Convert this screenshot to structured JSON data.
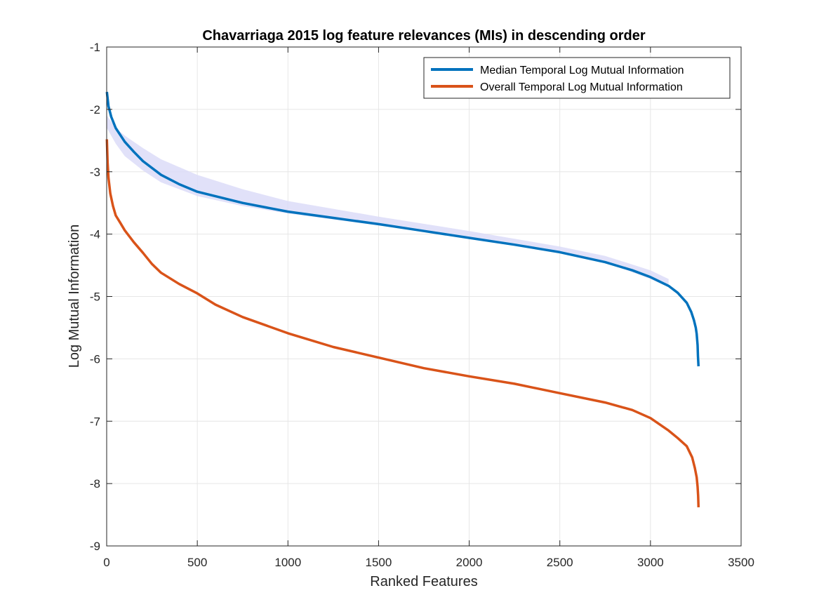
{
  "chart_data": {
    "type": "line",
    "title": "Chavarriaga 2015 log feature relevances (MIs) in descending order",
    "xlabel": "Ranked Features",
    "ylabel": "Log Mutual Information",
    "xlim": [
      0,
      3500
    ],
    "ylim": [
      -9,
      -1
    ],
    "xticks": [
      0,
      500,
      1000,
      1500,
      2000,
      2500,
      3000,
      3500
    ],
    "yticks": [
      -1,
      -2,
      -3,
      -4,
      -5,
      -6,
      -7,
      -8,
      -9
    ],
    "grid": true,
    "legend_position": "top-right",
    "series": [
      {
        "name": "Median Temporal Log Mutual Information",
        "color": "#0072BD",
        "x": [
          1,
          10,
          25,
          50,
          100,
          150,
          200,
          300,
          400,
          500,
          750,
          1000,
          1250,
          1500,
          1750,
          2000,
          2250,
          2500,
          2750,
          2900,
          3000,
          3100,
          3150,
          3200,
          3225,
          3240,
          3250,
          3255,
          3260,
          3262,
          3265
        ],
        "y": [
          -1.72,
          -1.95,
          -2.12,
          -2.3,
          -2.52,
          -2.68,
          -2.83,
          -3.05,
          -3.2,
          -3.32,
          -3.5,
          -3.64,
          -3.74,
          -3.84,
          -3.95,
          -4.06,
          -4.17,
          -4.29,
          -4.45,
          -4.58,
          -4.69,
          -4.83,
          -4.94,
          -5.1,
          -5.25,
          -5.38,
          -5.5,
          -5.6,
          -5.78,
          -5.95,
          -6.12
        ]
      },
      {
        "name": "Overall Temporal Log Mutual Information",
        "color": "#D95319",
        "x": [
          1,
          5,
          10,
          20,
          35,
          50,
          75,
          100,
          150,
          200,
          250,
          300,
          400,
          500,
          600,
          750,
          1000,
          1250,
          1500,
          1750,
          2000,
          2250,
          2500,
          2750,
          2900,
          3000,
          3100,
          3150,
          3200,
          3230,
          3245,
          3255,
          3260,
          3263,
          3265
        ],
        "y": [
          -2.48,
          -2.85,
          -3.1,
          -3.35,
          -3.55,
          -3.7,
          -3.82,
          -3.94,
          -4.13,
          -4.3,
          -4.48,
          -4.62,
          -4.8,
          -4.95,
          -5.13,
          -5.33,
          -5.59,
          -5.81,
          -5.98,
          -6.15,
          -6.28,
          -6.4,
          -6.55,
          -6.7,
          -6.82,
          -6.95,
          -7.15,
          -7.27,
          -7.4,
          -7.58,
          -7.75,
          -7.9,
          -8.05,
          -8.2,
          -8.38
        ]
      }
    ],
    "band": {
      "color": "#dcdcf8",
      "x": [
        1,
        50,
        100,
        200,
        300,
        500,
        750,
        1000,
        1500,
        2000,
        2500,
        2750,
        3000,
        3100
      ],
      "upper": [
        -2.1,
        -2.3,
        -2.42,
        -2.62,
        -2.8,
        -3.05,
        -3.28,
        -3.47,
        -3.72,
        -3.95,
        -4.2,
        -4.35,
        -4.58,
        -4.72
      ],
      "lower": [
        -2.3,
        -2.55,
        -2.75,
        -2.98,
        -3.17,
        -3.39,
        -3.55,
        -3.67,
        -3.86,
        -4.05,
        -4.28,
        -4.45,
        -4.72,
        -4.85
      ]
    }
  }
}
